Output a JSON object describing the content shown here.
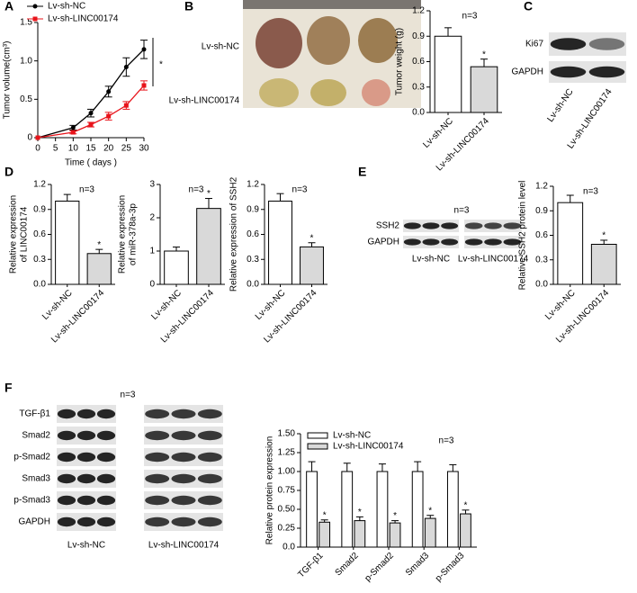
{
  "panel_letters": [
    "A",
    "B",
    "C",
    "D",
    "E",
    "F"
  ],
  "photo": {
    "rows": [
      "Lv-sh-NC",
      "Lv-sh-LINC00174"
    ]
  },
  "blot_c": {
    "rows": [
      "Ki67",
      "GAPDH"
    ],
    "columns": [
      "Lv-sh-NC",
      "Lv-sh-LINC00174"
    ]
  },
  "blot_e": {
    "title": "n=3",
    "rows": [
      "SSH2",
      "GAPDH"
    ],
    "columns": [
      "Lv-sh-NC",
      "Lv-sh-LINC00174"
    ]
  },
  "blot_f": {
    "title": "n=3",
    "rows": [
      "TGF-β1",
      "Smad2",
      "p-Smad2",
      "Smad3",
      "p-Smad3",
      "GAPDH"
    ],
    "columns": [
      "Lv-sh-NC",
      "Lv-sh-LINC00174"
    ]
  },
  "chart_data": [
    {
      "type": "line",
      "ylabel": "Tumor volume(cm³)",
      "xlabel": "Time ( days )",
      "annotation": "*",
      "x": [
        0,
        10,
        15,
        20,
        25,
        30
      ],
      "xlim": [
        0,
        30
      ],
      "xticks": [
        0,
        5,
        10,
        15,
        20,
        25,
        30
      ],
      "ylim": [
        0,
        1.5
      ],
      "yticks": [
        0,
        0.5,
        {
          "value": 1,
          "label": "1.0"
        },
        1.5
      ],
      "legend": "upper left",
      "series": [
        {
          "name": "Lv-sh-NC",
          "color": "#000000",
          "values": [
            0,
            0.13,
            0.32,
            0.6,
            0.92,
            1.15
          ],
          "errors": [
            0,
            0.03,
            0.05,
            0.07,
            0.12,
            0.12
          ]
        },
        {
          "name": "Lv-sh-LINC00174",
          "color": "#e8141b",
          "values": [
            0,
            0.07,
            0.17,
            0.28,
            0.42,
            0.68
          ],
          "errors": [
            0,
            0.02,
            0.03,
            0.05,
            0.05,
            0.06
          ]
        }
      ]
    },
    {
      "type": "bar",
      "title": "n=3",
      "ylabel": "Tumor weight (g)",
      "categories": [
        "Lv-sh-NC",
        "Lv-sh-LINC00174"
      ],
      "values": [
        0.9,
        0.54
      ],
      "errors": [
        0.1,
        0.09
      ],
      "colors": [
        "#ffffff",
        "#d9d9d9"
      ],
      "annotations": [
        null,
        "*"
      ],
      "ylim": [
        0,
        1.2
      ],
      "yticks": [
        {
          "value": 0,
          "label": "0.0"
        },
        0.3,
        0.6,
        0.9,
        1.2
      ]
    },
    {
      "type": "bar",
      "title": "n=3",
      "ylabel": [
        "Relative expression",
        "of LINC00174"
      ],
      "categories": [
        "Lv-sh-NC",
        "Lv-sh-LINC00174"
      ],
      "values": [
        1.0,
        0.37
      ],
      "errors": [
        0.08,
        0.05
      ],
      "colors": [
        "#ffffff",
        "#d9d9d9"
      ],
      "annotations": [
        null,
        "*"
      ],
      "ylim": [
        0,
        1.2
      ],
      "yticks": [
        {
          "value": 0,
          "label": "0.0"
        },
        0.3,
        0.6,
        0.9,
        1.2
      ]
    },
    {
      "type": "bar",
      "title": "n=3",
      "ylabel": [
        "Relative expression",
        "of miR-378a-3p"
      ],
      "categories": [
        "Lv-sh-NC",
        "Lv-sh-LINC00174"
      ],
      "values": [
        1.0,
        2.28
      ],
      "errors": [
        0.12,
        0.3
      ],
      "colors": [
        "#ffffff",
        "#d9d9d9"
      ],
      "annotations": [
        null,
        "*"
      ],
      "ylim": [
        0,
        3
      ],
      "yticks": [
        0,
        1,
        2,
        3
      ]
    },
    {
      "type": "bar",
      "title": "n=3",
      "ylabel": "Relative expression of SSH2",
      "categories": [
        "Lv-sh-NC",
        "Lv-sh-LINC00174"
      ],
      "values": [
        1.0,
        0.45
      ],
      "errors": [
        0.09,
        0.05
      ],
      "colors": [
        "#ffffff",
        "#d9d9d9"
      ],
      "annotations": [
        null,
        "*"
      ],
      "ylim": [
        0,
        1.2
      ],
      "yticks": [
        {
          "value": 0,
          "label": "0.0"
        },
        0.3,
        0.6,
        0.9,
        1.2
      ]
    },
    {
      "type": "bar",
      "title": "n=3",
      "ylabel": "Relative SSH2 protein level",
      "categories": [
        "Lv-sh-NC",
        "Lv-sh-LINC00174"
      ],
      "values": [
        1.0,
        0.49
      ],
      "errors": [
        0.09,
        0.05
      ],
      "colors": [
        "#ffffff",
        "#d9d9d9"
      ],
      "annotations": [
        null,
        "*"
      ],
      "ylim": [
        0,
        1.2
      ],
      "yticks": [
        {
          "value": 0,
          "label": "0.0"
        },
        0.3,
        0.6,
        0.9,
        1.2
      ]
    },
    {
      "type": "grouped_bar",
      "title": "n=3",
      "ylabel": "Relative protein expression",
      "legend": "upper left",
      "categories": [
        "TGF-β1",
        "Smad2",
        "p-Smad2",
        "Smad3",
        "p-Smad3"
      ],
      "ylim": [
        0,
        1.5
      ],
      "yticks": [
        {
          "value": 0,
          "label": "0.0"
        },
        0.25,
        {
          "value": 0.5,
          "label": "0.50"
        },
        0.75,
        {
          "value": 1,
          "label": "1.00"
        },
        1.25,
        {
          "value": 1.5,
          "label": "1.50"
        }
      ],
      "series": [
        {
          "name": "Lv-sh-NC",
          "color": "#ffffff",
          "values": [
            1.0,
            1.0,
            1.0,
            1.0,
            1.0
          ],
          "errors": [
            0.13,
            0.11,
            0.1,
            0.13,
            0.09
          ]
        },
        {
          "name": "Lv-sh-LINC00174",
          "color": "#d9d9d9",
          "values": [
            0.33,
            0.35,
            0.32,
            0.38,
            0.44
          ],
          "errors": [
            0.03,
            0.05,
            0.03,
            0.04,
            0.05
          ],
          "annotations": [
            "*",
            "*",
            "*",
            "*",
            "*"
          ]
        }
      ]
    }
  ]
}
